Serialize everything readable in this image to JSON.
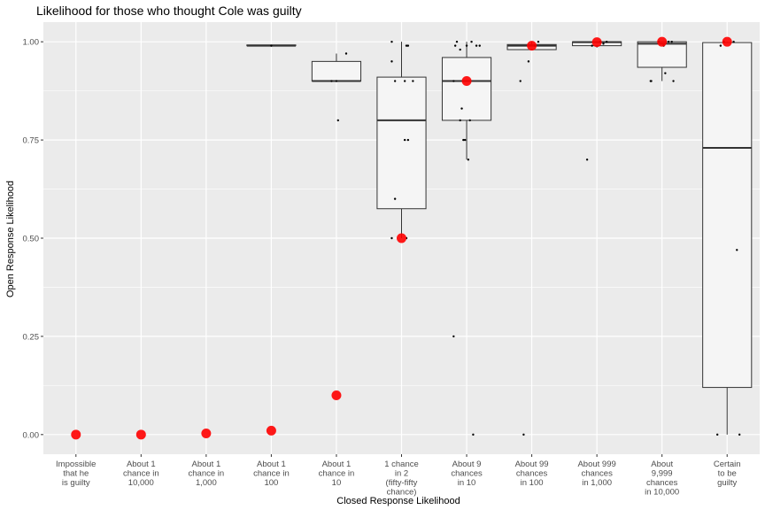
{
  "chart_data": {
    "type": "boxplot",
    "title": "Likelihood for those who thought Cole was guilty",
    "xlabel": "Closed Response Likelihood",
    "ylabel": "Open Response Likelihood",
    "ylim": [
      -0.05,
      1.05
    ],
    "yticks": [
      "0.00",
      "0.25",
      "0.50",
      "0.75",
      "1.00"
    ],
    "grid": true,
    "colors": {
      "panel": "#ebebeb",
      "grid": "#ffffff",
      "box_fill": "#f5f5f5",
      "box_line": "#333333",
      "points": "#000000",
      "mean_marker": "#ff0000"
    },
    "categories": [
      {
        "label": [
          "Impossible",
          "that he",
          "is guilty"
        ],
        "box": null,
        "mean": 0.0,
        "points": []
      },
      {
        "label": [
          "About 1",
          "chance in",
          "10,000"
        ],
        "box": null,
        "mean": 0.0,
        "points": []
      },
      {
        "label": [
          "About 1",
          "chance in",
          "1,000"
        ],
        "box": null,
        "mean": 0.003,
        "points": []
      },
      {
        "label": [
          "About 1",
          "chance in",
          "100"
        ],
        "box": {
          "min": 0.99,
          "q1": 0.99,
          "median": 0.99,
          "q3": 0.992,
          "max": 0.992
        },
        "mean": 0.01,
        "points": [
          [
            0.0,
            0.99
          ]
        ]
      },
      {
        "label": [
          "About 1",
          "chance in",
          "10"
        ],
        "box": {
          "min": 0.9,
          "q1": 0.9,
          "median": 0.9,
          "q3": 0.95,
          "max": 0.97
        },
        "mean": 0.1,
        "points": [
          [
            0.05,
            0.8
          ],
          [
            0.3,
            0.97
          ],
          [
            -0.15,
            0.9
          ],
          [
            0.0,
            0.9
          ]
        ]
      },
      {
        "label": [
          "1 chance",
          "in 2",
          "(fifty-fifty",
          "chance)"
        ],
        "box": {
          "min": 0.5,
          "q1": 0.575,
          "median": 0.8,
          "q3": 0.91,
          "max": 1.0
        },
        "mean": 0.5,
        "points": [
          [
            -0.3,
            1.0
          ],
          [
            -0.3,
            0.95
          ],
          [
            -0.2,
            0.9
          ],
          [
            0.1,
            0.75
          ],
          [
            0.2,
            0.75
          ],
          [
            0.15,
            0.99
          ],
          [
            0.2,
            0.99
          ],
          [
            -0.2,
            0.6
          ],
          [
            -0.3,
            0.5
          ],
          [
            0.15,
            0.5
          ],
          [
            0.35,
            0.9
          ],
          [
            0.1,
            0.9
          ]
        ]
      },
      {
        "label": [
          "About 9",
          "chances",
          "in 10"
        ],
        "box": {
          "min": 0.7,
          "q1": 0.8,
          "median": 0.9,
          "q3": 0.96,
          "max": 1.0
        },
        "mean": 0.9,
        "points": [
          [
            -0.35,
            0.99
          ],
          [
            -0.3,
            1.0
          ],
          [
            -0.2,
            0.98
          ],
          [
            0.0,
            0.99
          ],
          [
            0.15,
            1.0
          ],
          [
            0.3,
            0.99
          ],
          [
            0.4,
            0.99
          ],
          [
            -0.4,
            0.9
          ],
          [
            -0.15,
            0.83
          ],
          [
            -0.1,
            0.75
          ],
          [
            -0.05,
            0.75
          ],
          [
            0.05,
            0.7
          ],
          [
            -0.4,
            0.25
          ],
          [
            0.2,
            0.0
          ],
          [
            0.1,
            0.8
          ],
          [
            -0.2,
            0.8
          ]
        ]
      },
      {
        "label": [
          "About 99",
          "chances",
          "in 100"
        ],
        "box": {
          "min": 0.98,
          "q1": 0.98,
          "median": 0.99,
          "q3": 0.993,
          "max": 1.0
        },
        "mean": 0.99,
        "points": [
          [
            -0.35,
            0.9
          ],
          [
            -0.1,
            0.95
          ],
          [
            -0.25,
            0.0
          ],
          [
            0.1,
            0.99
          ],
          [
            0.2,
            1.0
          ]
        ]
      },
      {
        "label": [
          "About 999",
          "chances",
          "in 1,000"
        ],
        "box": {
          "min": 0.985,
          "q1": 0.99,
          "median": 0.999,
          "q3": 1.0,
          "max": 1.0
        },
        "mean": 0.999,
        "points": [
          [
            -0.3,
            0.7
          ],
          [
            -0.15,
            0.99
          ],
          [
            0.1,
            1.0
          ],
          [
            0.2,
            0.995
          ],
          [
            0.3,
            1.0
          ]
        ]
      },
      {
        "label": [
          "About",
          "9,999",
          "chances",
          "in 10,000"
        ],
        "box": {
          "min": 0.9,
          "q1": 0.935,
          "median": 0.995,
          "q3": 1.0,
          "max": 1.0
        },
        "mean": 1.0,
        "points": [
          [
            -0.35,
            0.9
          ],
          [
            -0.33,
            0.9
          ],
          [
            0.1,
            0.92
          ],
          [
            0.35,
            0.9
          ],
          [
            -0.1,
            1.0
          ],
          [
            0.2,
            1.0
          ],
          [
            0.3,
            1.0
          ],
          [
            0.05,
            0.99
          ]
        ]
      },
      {
        "label": [
          "Certain",
          "to be",
          "guilty"
        ],
        "box": {
          "min": 0.0,
          "q1": 0.12,
          "median": 0.73,
          "q3": 0.998,
          "max": 1.0
        },
        "mean": 1.0,
        "points": [
          [
            -0.3,
            0.0
          ],
          [
            0.38,
            0.0
          ],
          [
            0.3,
            0.47
          ],
          [
            -0.2,
            0.99
          ],
          [
            0.2,
            1.0
          ],
          [
            -0.1,
            1.0
          ]
        ]
      }
    ]
  }
}
